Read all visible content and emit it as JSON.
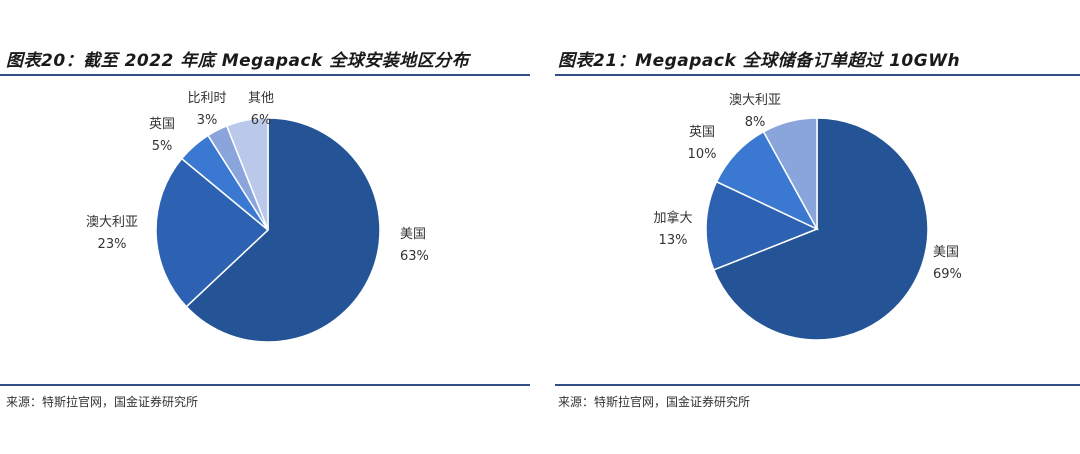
{
  "chart_data": [
    {
      "type": "pie",
      "title": "图表20：截至 2022 年底 Megapack 全球安装地区分布",
      "source": "来源：特斯拉官网，国金证券研究所",
      "slices": [
        {
          "label": "美国",
          "value": 63,
          "value_label": "63%",
          "color": "#245496"
        },
        {
          "label": "澳大利亚",
          "value": 23,
          "value_label": "23%",
          "color": "#2d62b2"
        },
        {
          "label": "英国",
          "value": 5,
          "value_label": "5%",
          "color": "#3a78d2"
        },
        {
          "label": "比利时",
          "value": 3,
          "value_label": "3%",
          "color": "#8aa5dc"
        },
        {
          "label": "其他",
          "value": 6,
          "value_label": "6%",
          "color": "#bac8ea"
        }
      ]
    },
    {
      "type": "pie",
      "title": "图表21：Megapack 全球储备订单超过 10GWh",
      "source": "来源：特斯拉官网，国金证券研究所",
      "slices": [
        {
          "label": "美国",
          "value": 69,
          "value_label": "69%",
          "color": "#245496"
        },
        {
          "label": "加拿大",
          "value": 13,
          "value_label": "13%",
          "color": "#2d62b2"
        },
        {
          "label": "英国",
          "value": 10,
          "value_label": "10%",
          "color": "#3a78d2"
        },
        {
          "label": "澳大利亚",
          "value": 8,
          "value_label": "8%",
          "color": "#8aa5dc"
        }
      ]
    }
  ]
}
